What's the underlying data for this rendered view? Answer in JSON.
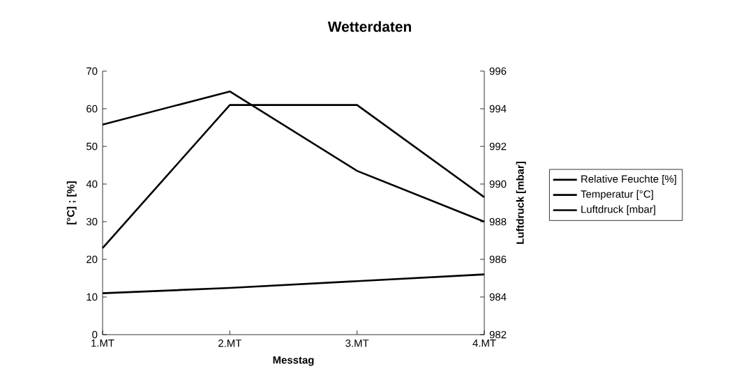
{
  "chart_data": {
    "type": "line",
    "title": "Wetterdaten",
    "xlabel": "Messtag",
    "ylabel": "[°C] ; [%]",
    "y2label": "Luftdruck [mbar]",
    "categories": [
      "1.MT",
      "2.MT",
      "3.MT",
      "4.MT"
    ],
    "series": [
      {
        "name": "Relative Feuchte [%]",
        "color": "#000000",
        "values": [
          55.8,
          64.6,
          43.5,
          30
        ]
      },
      {
        "name": "Temperatur [°C]",
        "color": "#000000",
        "values": [
          11,
          12.4,
          14.2,
          16
        ]
      },
      {
        "name": "Luftdruck [mbar]",
        "color": "#000000",
        "axis": "y2",
        "values": [
          986.6,
          994.2,
          994.2,
          989.3
        ]
      }
    ],
    "ylim": [
      0,
      70
    ],
    "yticks": [
      0,
      10,
      20,
      30,
      40,
      50,
      60,
      70
    ],
    "y2lim": [
      982,
      996
    ],
    "y2ticks": [
      982,
      984,
      986,
      988,
      990,
      992,
      994,
      996
    ],
    "legend": "right",
    "grid": false,
    "marker": "none",
    "line_style": "solid"
  }
}
